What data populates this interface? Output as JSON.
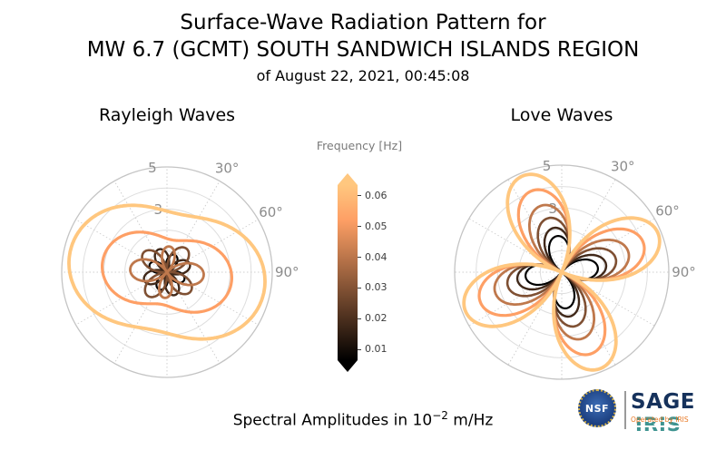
{
  "header": {
    "line1": "Surface-Wave Radiation Pattern for",
    "line2": "MW 6.7 (GCMT) SOUTH SANDWICH ISLANDS REGION",
    "line3": "of August 22, 2021, 00:45:08"
  },
  "footer": {
    "amplitude_prefix": "Spectral Amplitudes in 10",
    "amplitude_exponent": "−2",
    "amplitude_suffix": " m/Hz"
  },
  "logos": {
    "nsf": "NSF",
    "sage": "SAGE",
    "iris": "IRIS",
    "operated": "Operated by IRIS"
  },
  "chart_data": {
    "type": "line",
    "subtype": "polar-radiation-pattern",
    "plots": [
      {
        "id": "rayleigh",
        "title": "Rayleigh Waves",
        "r_max": 5,
        "radius_px": 116,
        "rlabel_angle_deg": -8,
        "radial_ticks": [
          {
            "r": 3,
            "label": "3"
          },
          {
            "r": 5,
            "label": "5"
          }
        ],
        "angle_ticks": [
          {
            "deg": 30,
            "label": "30°"
          },
          {
            "deg": 60,
            "label": "60°"
          },
          {
            "deg": 90,
            "label": "90°"
          }
        ],
        "series": [
          {
            "frequency": 0.01,
            "color": "#000000",
            "amplitude": 0.9,
            "c0": 0,
            "c2": 1,
            "phase_deg": 25,
            "width": 2.2
          },
          {
            "frequency": 0.02,
            "color": "#402819",
            "amplitude": 1.15,
            "c0": 0,
            "c2": 1,
            "phase_deg": 70,
            "width": 2.4
          },
          {
            "frequency": 0.03,
            "color": "#7f5033",
            "amplitude": 1.45,
            "c0": 0,
            "c2": 1,
            "phase_deg": 40,
            "width": 2.6
          },
          {
            "frequency": 0.04,
            "color": "#bf784c",
            "amplitude": 1.75,
            "c0": 0.15,
            "c2": 0.85,
            "phase_deg": 95,
            "width": 2.8
          },
          {
            "frequency": 0.05,
            "color": "#fe9f65",
            "amplitude": 3.1,
            "c0": 0.75,
            "c2": 0.25,
            "phase_deg": 100,
            "width": 3.2
          },
          {
            "frequency": 0.06,
            "color": "#ffc77f",
            "amplitude": 4.7,
            "c0": 0.8,
            "c2": 0.2,
            "phase_deg": 102,
            "width": 3.8
          }
        ]
      },
      {
        "id": "love",
        "title": "Love Waves",
        "r_max": 5,
        "radius_px": 118,
        "rlabel_angle_deg": -8,
        "radial_ticks": [
          {
            "r": 3,
            "label": "3"
          },
          {
            "r": 5,
            "label": "5"
          }
        ],
        "angle_ticks": [
          {
            "deg": 30,
            "label": "30°"
          },
          {
            "deg": 60,
            "label": "60°"
          },
          {
            "deg": 90,
            "label": "90°"
          }
        ],
        "series": [
          {
            "frequency": 0.01,
            "color": "#000000",
            "amplitude": 1.7,
            "c0": 0,
            "c2": 1,
            "phase_deg": 83,
            "width": 2.2
          },
          {
            "frequency": 0.02,
            "color": "#402819",
            "amplitude": 2.1,
            "c0": 0,
            "c2": 1,
            "phase_deg": 80,
            "width": 2.4
          },
          {
            "frequency": 0.03,
            "color": "#7f5033",
            "amplitude": 2.6,
            "c0": 0,
            "c2": 1,
            "phase_deg": 76,
            "width": 2.6
          },
          {
            "frequency": 0.04,
            "color": "#bf784c",
            "amplitude": 3.25,
            "c0": 0,
            "c2": 1,
            "phase_deg": 73,
            "width": 2.8
          },
          {
            "frequency": 0.05,
            "color": "#fe9f65",
            "amplitude": 4.05,
            "c0": 0,
            "c2": 1,
            "phase_deg": 70,
            "width": 3.2
          },
          {
            "frequency": 0.06,
            "color": "#ffc77f",
            "amplitude": 4.85,
            "c0": 0,
            "c2": 1,
            "phase_deg": 68,
            "width": 3.8
          }
        ]
      }
    ],
    "colorbar": {
      "title": "Frequency [Hz]",
      "unit": "Hz",
      "range": [
        0.01,
        0.06
      ],
      "ticks": [
        "0.06",
        "0.05",
        "0.04",
        "0.03",
        "0.02",
        "0.01"
      ],
      "stops": [
        {
          "pos": 0,
          "color": "#ffc77f"
        },
        {
          "pos": 20,
          "color": "#fe9f65"
        },
        {
          "pos": 40,
          "color": "#bf784c"
        },
        {
          "pos": 60,
          "color": "#7f5033"
        },
        {
          "pos": 80,
          "color": "#402819"
        },
        {
          "pos": 100,
          "color": "#000000"
        }
      ],
      "extend_colors": {
        "top": "#ffc77f",
        "bottom": "#000000"
      }
    }
  }
}
